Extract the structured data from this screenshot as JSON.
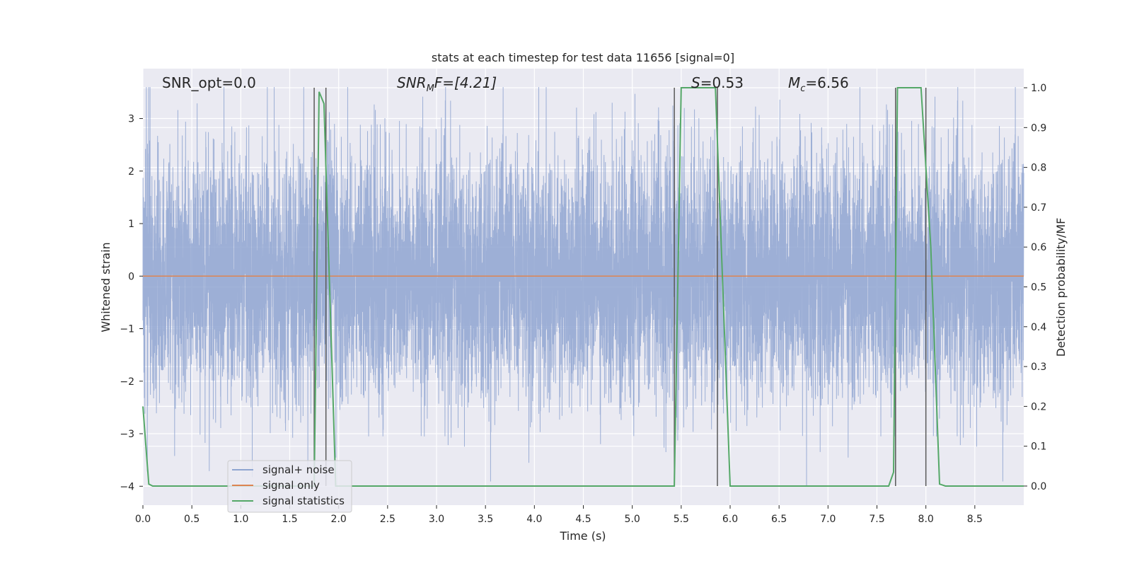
{
  "chart_data": {
    "type": "line",
    "title": "stats at each timestep for test data 11656 [signal=0]",
    "xlabel": "Time (s)",
    "ylabel_left": "Whitened strain",
    "ylabel_right": "Detection probability/MF",
    "xlim": [
      0,
      9.0
    ],
    "ylim_left": [
      -4.36,
      3.95
    ],
    "ylim_right": [
      -0.048,
      1.048
    ],
    "grid": true,
    "legend_position": "lower-left",
    "x_ticks": [
      "0.0",
      "0.5",
      "1.0",
      "1.5",
      "2.0",
      "2.5",
      "3.0",
      "3.5",
      "4.0",
      "4.5",
      "5.0",
      "5.5",
      "6.0",
      "6.5",
      "7.0",
      "7.5",
      "8.0",
      "8.5"
    ],
    "y_ticks_left": [
      "3",
      "2",
      "1",
      "0",
      "−1",
      "−2",
      "−3",
      "−4"
    ],
    "y_ticks_right": [
      "1.0",
      "0.9",
      "0.8",
      "0.7",
      "0.6",
      "0.5",
      "0.4",
      "0.3",
      "0.2",
      "0.1",
      "0.0"
    ],
    "annotations": {
      "snr_opt": "SNR_opt=0.0",
      "snr_mf_name": "SNR",
      "snr_mf_sub": "M",
      "snr_mf_rest": "F=[4.21]",
      "s_name": "S",
      "s_value": "=0.53",
      "mc_name": "M",
      "mc_sub": "c",
      "mc_value": "=6.56"
    },
    "vertical_markers_s": [
      1.75,
      1.87,
      5.43,
      5.87,
      7.69,
      8.0
    ],
    "series": [
      {
        "name": "signal+ noise",
        "axis": "left",
        "color": "#8fa5d1",
        "style": "dense whitened noise, roughly N(0,1) with extremes near ±3.5",
        "samples": 9000,
        "range": [
          -4.0,
          3.6
        ]
      },
      {
        "name": "signal only",
        "axis": "left",
        "color": "#dd8452",
        "x": [
          0,
          9.0
        ],
        "y": [
          0,
          0
        ]
      },
      {
        "name": "signal statistics",
        "axis": "right",
        "color": "#55a868",
        "x": [
          0,
          0.03,
          0.06,
          0.1,
          1.75,
          1.8,
          1.85,
          1.97,
          2.0,
          5.43,
          5.5,
          5.85,
          6.0,
          7.62,
          7.67,
          7.71,
          7.95,
          8.05,
          8.14,
          8.2,
          9.0
        ],
        "y": [
          0.2,
          0.1,
          0.005,
          0.0,
          0.0,
          0.99,
          0.96,
          0.0,
          0.0,
          0.0,
          1.0,
          1.0,
          0.0,
          0.0,
          0.035,
          1.0,
          1.0,
          0.6,
          0.005,
          0.0,
          0.0
        ]
      }
    ]
  },
  "colors": {
    "axes_bg": "#eaeaf2",
    "grid": "#ffffff",
    "noise": "#8fa5d1",
    "signal": "#dd8452",
    "stat": "#55a868",
    "marker": "#595959"
  }
}
